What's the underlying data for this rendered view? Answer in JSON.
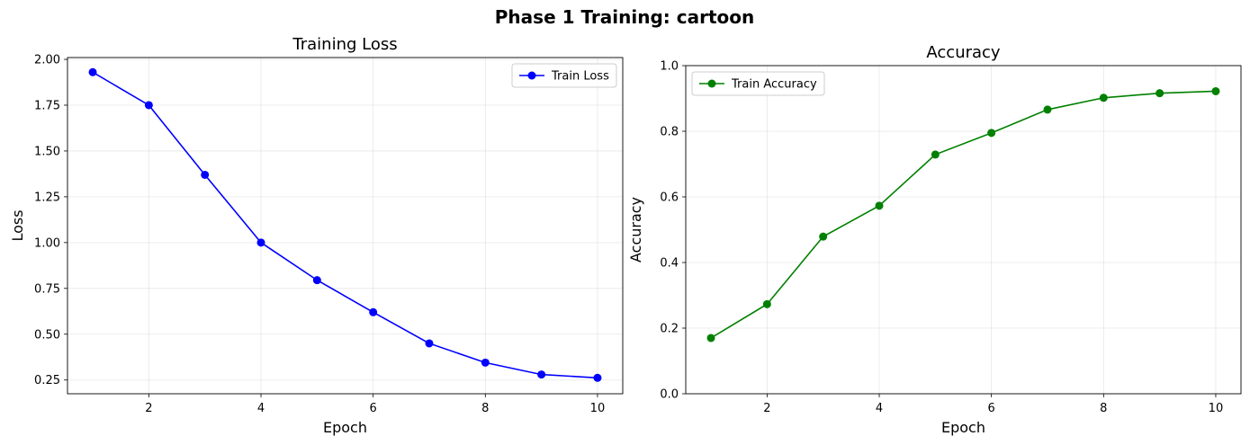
{
  "suptitle": "Phase 1 Training: cartoon",
  "chart_data": [
    {
      "type": "line",
      "title": "Training Loss",
      "xlabel": "Epoch",
      "ylabel": "Loss",
      "xlim": [
        0.55,
        10.45
      ],
      "ylim": [
        0.175,
        2.01
      ],
      "xticks": [
        2,
        4,
        6,
        8,
        10
      ],
      "xtick_labels": [
        "2",
        "4",
        "6",
        "8",
        "10"
      ],
      "yticks": [
        0.25,
        0.5,
        0.75,
        1.0,
        1.25,
        1.5,
        1.75,
        2.0
      ],
      "ytick_labels": [
        "0.25",
        "0.50",
        "0.75",
        "1.00",
        "1.25",
        "1.50",
        "1.75",
        "2.00"
      ],
      "grid": true,
      "legend_position": "top-right",
      "series": [
        {
          "name": "Train Loss",
          "color": "#0000ff",
          "marker": "circle",
          "x": [
            1,
            2,
            3,
            4,
            5,
            6,
            7,
            8,
            9,
            10
          ],
          "values": [
            1.93,
            1.75,
            1.37,
            1.0,
            0.795,
            0.62,
            0.45,
            0.345,
            0.28,
            0.262
          ]
        }
      ]
    },
    {
      "type": "line",
      "title": "Accuracy",
      "xlabel": "Epoch",
      "ylabel": "Accuracy",
      "xlim": [
        0.55,
        10.45
      ],
      "ylim": [
        0.0,
        1.0
      ],
      "xticks": [
        2,
        4,
        6,
        8,
        10
      ],
      "xtick_labels": [
        "2",
        "4",
        "6",
        "8",
        "10"
      ],
      "yticks": [
        0.0,
        0.2,
        0.4,
        0.6,
        0.8,
        1.0
      ],
      "ytick_labels": [
        "0.0",
        "0.2",
        "0.4",
        "0.6",
        "0.8",
        "1.0"
      ],
      "grid": true,
      "legend_position": "top-left",
      "series": [
        {
          "name": "Train Accuracy",
          "color": "#008000",
          "marker": "circle",
          "x": [
            1,
            2,
            3,
            4,
            5,
            6,
            7,
            8,
            9,
            10
          ],
          "values": [
            0.17,
            0.273,
            0.479,
            0.573,
            0.729,
            0.795,
            0.866,
            0.902,
            0.916,
            0.922
          ]
        }
      ]
    }
  ]
}
